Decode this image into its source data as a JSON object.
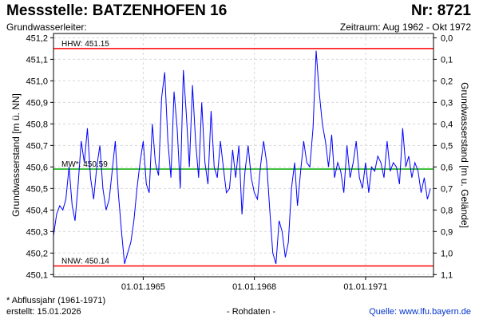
{
  "header": {
    "title": "Messstelle: BATZENHOFEN 16",
    "number": "Nr: 8721",
    "subtitle_left": "Grundwasserleiter:",
    "subtitle_right": "Zeitraum: Aug 1962 - Okt 1972"
  },
  "footer": {
    "note": "* Abflussjahr (1961-1971)",
    "created": "erstellt:  15.01.2026",
    "data_type": "- Rohdaten -",
    "source": "Quelle: www.lfu.bayern.de"
  },
  "chart_data": {
    "type": "line",
    "ylabel": "Grundwasserstand [m ü. NN]",
    "ylabel_right": "Grundwasserstand [m u. Gelände]",
    "ylim": [
      451.22,
      450.09
    ],
    "xlim": [
      "1962-08-01",
      "1972-10-31"
    ],
    "y_ticks": [
      "451,2",
      "451,1",
      "451,0",
      "450,9",
      "450,8",
      "450,7",
      "450,6",
      "450,5",
      "450,4",
      "450,3",
      "450,2",
      "450,1"
    ],
    "y_ticks_right": [
      "0,0",
      "0,1",
      "0,2",
      "0,3",
      "0,4",
      "0,5",
      "0,6",
      "0,7",
      "0,8",
      "0,9",
      "1,0",
      "1,1"
    ],
    "x_ticks": [
      "01.01.1965",
      "01.01.1968",
      "01.01.1971"
    ],
    "reference_lines": [
      {
        "label": "HHW: 451.15",
        "value": 451.15,
        "color": "#ff0000"
      },
      {
        "label": "MW*: 450.59",
        "value": 450.59,
        "color": "#00aa00"
      },
      {
        "label": "NNW: 450.14",
        "value": 450.14,
        "color": "#ff0000"
      }
    ],
    "series": [
      {
        "color": "#0000ff",
        "x": [
          "1962-08-01",
          "1962-09-01",
          "1962-10-01",
          "1962-11-01",
          "1962-12-01",
          "1963-01-01",
          "1963-02-01",
          "1963-03-01",
          "1963-04-01",
          "1963-05-01",
          "1963-06-01",
          "1963-07-01",
          "1963-08-01",
          "1963-09-01",
          "1963-10-01",
          "1963-11-01",
          "1963-12-01",
          "1964-01-01",
          "1964-02-01",
          "1964-03-01",
          "1964-04-01",
          "1964-05-01",
          "1964-06-01",
          "1964-07-01",
          "1964-08-01",
          "1964-09-01",
          "1964-10-01",
          "1964-11-01",
          "1964-12-01",
          "1965-01-01",
          "1965-02-01",
          "1965-03-01",
          "1965-04-01",
          "1965-05-01",
          "1965-06-01",
          "1965-07-01",
          "1965-08-01",
          "1965-09-01",
          "1965-10-01",
          "1965-11-01",
          "1965-12-01",
          "1966-01-01",
          "1966-02-01",
          "1966-03-01",
          "1966-04-01",
          "1966-05-01",
          "1966-06-01",
          "1966-07-01",
          "1966-08-01",
          "1966-09-01",
          "1966-10-01",
          "1966-11-01",
          "1966-12-01",
          "1967-01-01",
          "1967-02-01",
          "1967-03-01",
          "1967-04-01",
          "1967-05-01",
          "1967-06-01",
          "1967-07-01",
          "1967-08-01",
          "1967-09-01",
          "1967-10-01",
          "1967-11-01",
          "1967-12-01",
          "1968-01-01",
          "1968-02-01",
          "1968-03-01",
          "1968-04-01",
          "1968-05-01",
          "1968-06-01",
          "1968-07-01",
          "1968-08-01",
          "1968-09-01",
          "1968-10-01",
          "1968-11-01",
          "1968-12-01",
          "1969-01-01",
          "1969-02-01",
          "1969-03-01",
          "1969-04-01",
          "1969-05-01",
          "1969-06-01",
          "1969-07-01",
          "1969-08-01",
          "1969-09-01",
          "1969-10-01",
          "1969-11-01",
          "1969-12-01",
          "1970-01-01",
          "1970-02-01",
          "1970-03-01",
          "1970-04-01",
          "1970-05-01",
          "1970-06-01",
          "1970-07-01",
          "1970-08-01",
          "1970-09-01",
          "1970-10-01",
          "1970-11-01",
          "1970-12-01",
          "1971-01-01",
          "1971-02-01",
          "1971-03-01",
          "1971-04-01",
          "1971-05-01",
          "1971-06-01",
          "1971-07-01",
          "1971-08-01",
          "1971-09-01",
          "1971-10-01",
          "1971-11-01",
          "1971-12-01",
          "1972-01-01",
          "1972-02-01",
          "1972-03-01",
          "1972-04-01",
          "1972-05-01",
          "1972-06-01",
          "1972-07-01",
          "1972-08-01",
          "1972-09-01",
          "1972-10-01"
        ],
        "y": [
          450.28,
          450.38,
          450.42,
          450.4,
          450.45,
          450.6,
          450.42,
          450.35,
          450.52,
          450.72,
          450.62,
          450.78,
          450.55,
          450.45,
          450.6,
          450.7,
          450.5,
          450.4,
          450.45,
          450.58,
          450.72,
          450.48,
          450.3,
          450.15,
          450.2,
          450.25,
          450.35,
          450.5,
          450.62,
          450.72,
          450.52,
          450.48,
          450.8,
          450.62,
          450.56,
          450.92,
          451.04,
          450.72,
          450.55,
          450.95,
          450.78,
          450.5,
          451.05,
          450.85,
          450.6,
          450.98,
          450.72,
          450.55,
          450.9,
          450.62,
          450.52,
          450.86,
          450.6,
          450.55,
          450.72,
          450.6,
          450.48,
          450.5,
          450.68,
          450.55,
          450.7,
          450.38,
          450.58,
          450.7,
          450.55,
          450.48,
          450.45,
          450.6,
          450.72,
          450.62,
          450.4,
          450.2,
          450.15,
          450.35,
          450.3,
          450.18,
          450.25,
          450.5,
          450.62,
          450.42,
          450.58,
          450.72,
          450.62,
          450.6,
          450.78,
          451.14,
          450.95,
          450.8,
          450.72,
          450.6,
          450.75,
          450.55,
          450.62,
          450.58,
          450.48,
          450.7,
          450.55,
          450.62,
          450.72,
          450.55,
          450.5,
          450.62,
          450.48,
          450.6,
          450.58,
          450.65,
          450.62,
          450.55,
          450.72,
          450.58,
          450.62,
          450.6,
          450.52,
          450.78,
          450.6,
          450.65,
          450.55,
          450.62,
          450.58,
          450.48,
          450.55,
          450.45,
          450.5
        ]
      }
    ]
  }
}
